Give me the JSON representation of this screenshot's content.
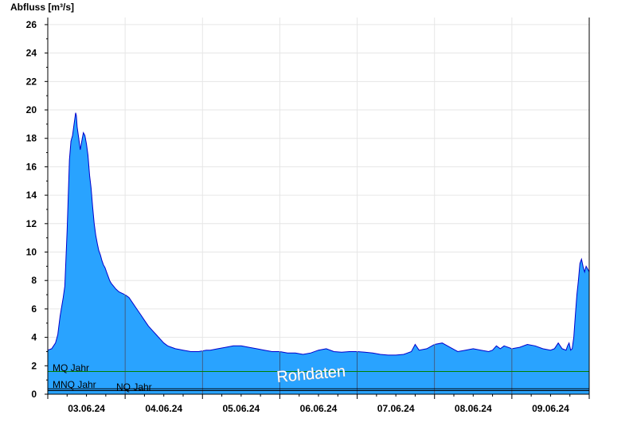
{
  "chart_data": {
    "type": "area",
    "ylabel": "Abfluss [m³/s]",
    "ylim": [
      0,
      26.5
    ],
    "yticks": [
      0,
      2,
      4,
      6,
      8,
      10,
      12,
      14,
      16,
      18,
      20,
      22,
      24,
      26
    ],
    "xlim_days": [
      0,
      7.0
    ],
    "day_labels": [
      "03.06.24",
      "04.06.24",
      "05.06.24",
      "06.06.24",
      "07.06.24",
      "08.06.24",
      "09.06.24"
    ],
    "grid": true,
    "fill_color": "#29a3ff",
    "line_color": "#0000cc",
    "series": [
      {
        "x": [
          0,
          0.05,
          0.1,
          0.13,
          0.16,
          0.2,
          0.22,
          0.25,
          0.28,
          0.3,
          0.32,
          0.34,
          0.36,
          0.37,
          0.38,
          0.4,
          0.42,
          0.44,
          0.46,
          0.48,
          0.5,
          0.52,
          0.54,
          0.56,
          0.58,
          0.6,
          0.62,
          0.64,
          0.66,
          0.68,
          0.7,
          0.72,
          0.74,
          0.76,
          0.78,
          0.8,
          0.82,
          0.85,
          0.88,
          0.92,
          0.96,
          1.0,
          1.05,
          1.1,
          1.15,
          1.2,
          1.25,
          1.3,
          1.35,
          1.4,
          1.45,
          1.5,
          1.55,
          1.6,
          1.65,
          1.7,
          1.75,
          1.8,
          1.85,
          1.9,
          1.95,
          2.0,
          2.05,
          2.1,
          2.2,
          2.3,
          2.4,
          2.5,
          2.6,
          2.7,
          2.8,
          2.9,
          3.0,
          3.1,
          3.2,
          3.3,
          3.4,
          3.5,
          3.6,
          3.7,
          3.8,
          3.9,
          4.0,
          4.1,
          4.2,
          4.3,
          4.4,
          4.5,
          4.6,
          4.7,
          4.75,
          4.8,
          4.9,
          5.0,
          5.1,
          5.2,
          5.3,
          5.4,
          5.5,
          5.6,
          5.65,
          5.7,
          5.75,
          5.8,
          5.85,
          5.9,
          6.0,
          6.1,
          6.2,
          6.3,
          6.4,
          6.5,
          6.55,
          6.6,
          6.65,
          6.7,
          6.72,
          6.74,
          6.76,
          6.78,
          6.8,
          6.82,
          6.84,
          6.86,
          6.88,
          6.9,
          6.92,
          6.94,
          6.96,
          6.98,
          7.0
        ],
        "y": [
          3.1,
          3.2,
          3.6,
          4.2,
          5.5,
          6.8,
          7.6,
          11.5,
          16.5,
          17.8,
          18.2,
          19.0,
          19.8,
          19.6,
          18.8,
          18.0,
          17.2,
          17.8,
          18.4,
          18.2,
          17.6,
          16.8,
          15.4,
          14.5,
          13.2,
          12.0,
          11.2,
          10.6,
          10.1,
          9.8,
          9.4,
          9.1,
          8.9,
          8.6,
          8.3,
          8.0,
          7.8,
          7.6,
          7.4,
          7.2,
          7.1,
          7.0,
          6.8,
          6.4,
          6.0,
          5.6,
          5.2,
          4.8,
          4.5,
          4.2,
          3.9,
          3.6,
          3.4,
          3.3,
          3.2,
          3.15,
          3.1,
          3.05,
          3.0,
          3.0,
          3.0,
          3.05,
          3.1,
          3.1,
          3.2,
          3.3,
          3.4,
          3.4,
          3.3,
          3.2,
          3.1,
          3.0,
          3.0,
          2.9,
          2.9,
          2.8,
          2.9,
          3.1,
          3.2,
          3.0,
          2.95,
          3.0,
          3.0,
          2.95,
          2.9,
          2.8,
          2.75,
          2.75,
          2.8,
          3.0,
          3.5,
          3.1,
          3.2,
          3.5,
          3.6,
          3.3,
          3.0,
          3.1,
          3.2,
          3.1,
          3.05,
          3.0,
          3.1,
          3.4,
          3.2,
          3.4,
          3.2,
          3.3,
          3.5,
          3.4,
          3.2,
          3.1,
          3.2,
          3.6,
          3.2,
          3.1,
          3.4,
          3.6,
          3.1,
          3.2,
          4.0,
          5.5,
          7.0,
          8.0,
          9.2,
          9.5,
          9.0,
          8.6,
          9.0,
          8.8,
          8.6
        ]
      }
    ],
    "reference_lines": [
      {
        "label": "MQ Jahr",
        "value": 1.6,
        "color": "#008000"
      },
      {
        "label": "MNQ Jahr",
        "value": 0.38,
        "color": "#000000"
      },
      {
        "label": "NQ Jahr",
        "value": 0.25,
        "color": "#000000"
      }
    ],
    "watermark": "Rohdaten"
  }
}
